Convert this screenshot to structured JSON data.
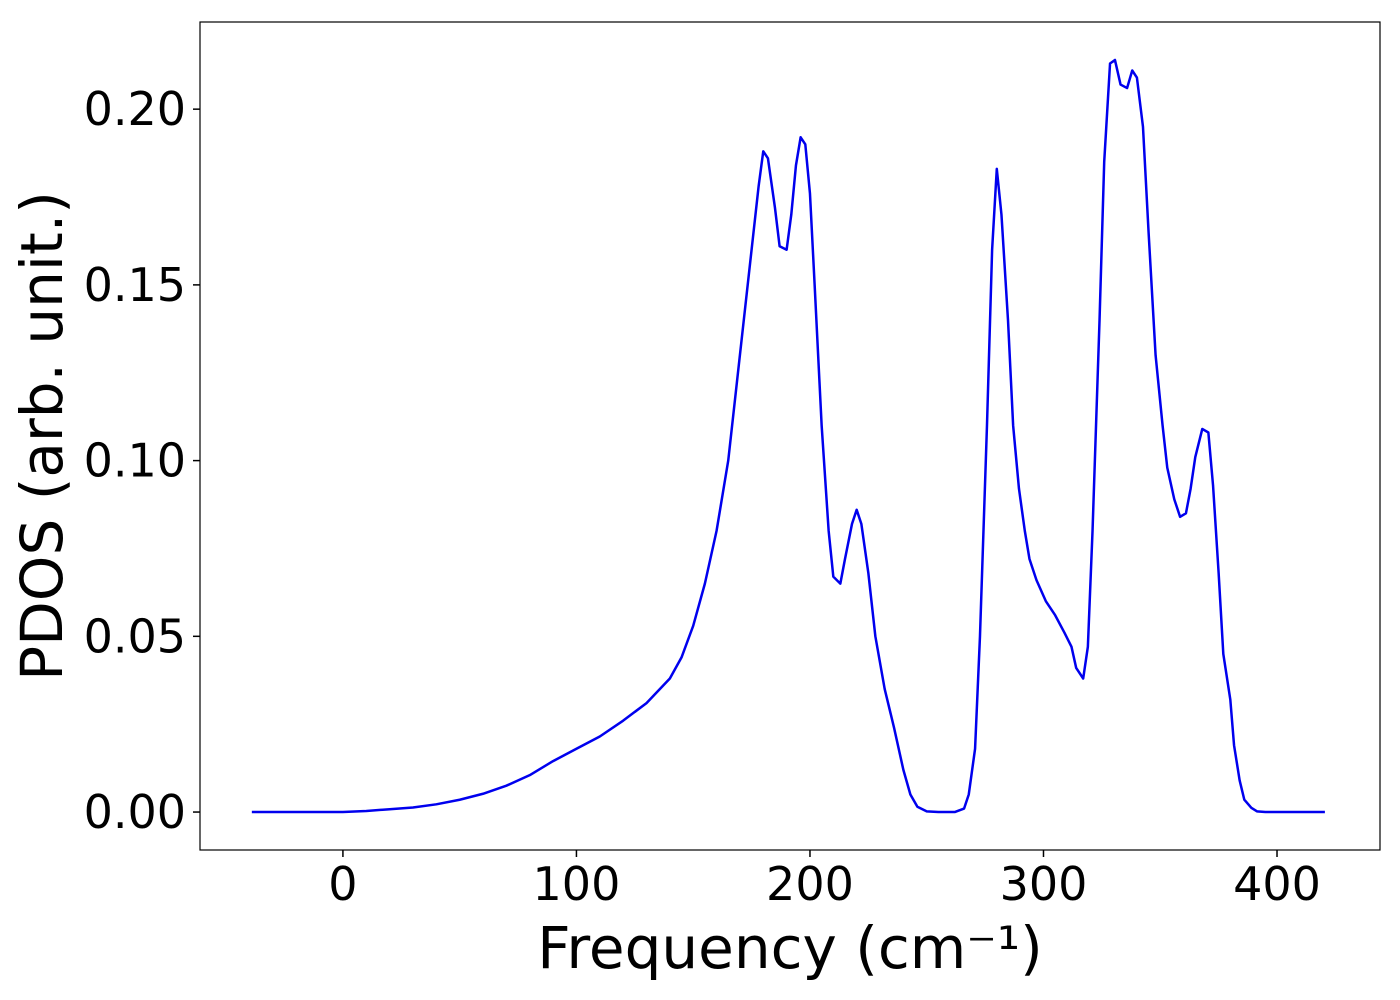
{
  "chart_data": {
    "type": "line",
    "xlabel": "Frequency (cm⁻¹)",
    "ylabel": "PDOS (arb. unit.)",
    "x": [
      -39,
      0,
      10,
      20,
      30,
      40,
      50,
      60,
      70,
      80,
      90,
      100,
      110,
      120,
      130,
      140,
      145,
      150,
      155,
      160,
      165,
      170,
      175,
      178,
      180,
      182,
      185,
      187,
      190,
      192,
      194,
      196,
      198,
      200,
      202,
      205,
      208,
      210,
      213,
      215,
      218,
      220,
      222,
      225,
      228,
      232,
      236,
      240,
      243,
      246,
      250,
      255,
      262,
      266,
      268,
      270.7,
      272.8,
      275.8,
      278,
      280,
      282,
      284.8,
      287,
      289.5,
      292,
      294,
      297,
      301,
      305,
      309,
      312,
      314,
      317,
      319,
      321,
      324,
      326,
      328.5,
      330.6,
      333,
      335.8,
      338,
      340,
      342.6,
      345,
      348,
      351,
      353,
      356,
      358.5,
      361,
      363,
      365,
      368,
      370.6,
      372.6,
      375,
      377,
      380,
      381.6,
      384,
      386,
      389,
      391.4,
      395,
      420.5
    ],
    "series": [
      {
        "name": "PDOS",
        "color": "#0000ee",
        "values": [
          0,
          0,
          0.0003,
          0.0008,
          0.0013,
          0.0022,
          0.0035,
          0.0052,
          0.0075,
          0.0105,
          0.0145,
          0.018,
          0.0215,
          0.026,
          0.031,
          0.038,
          0.044,
          0.053,
          0.065,
          0.08,
          0.1,
          0.13,
          0.16,
          0.178,
          0.188,
          0.186,
          0.172,
          0.161,
          0.16,
          0.17,
          0.184,
          0.192,
          0.19,
          0.176,
          0.15,
          0.11,
          0.08,
          0.067,
          0.065,
          0.072,
          0.082,
          0.086,
          0.082,
          0.068,
          0.05,
          0.035,
          0.024,
          0.012,
          0.005,
          0.0015,
          0.0002,
          0,
          0,
          0.001,
          0.005,
          0.018,
          0.05,
          0.11,
          0.16,
          0.183,
          0.17,
          0.14,
          0.11,
          0.092,
          0.08,
          0.072,
          0.066,
          0.06,
          0.056,
          0.051,
          0.047,
          0.041,
          0.038,
          0.047,
          0.08,
          0.14,
          0.185,
          0.213,
          0.214,
          0.207,
          0.206,
          0.211,
          0.209,
          0.195,
          0.165,
          0.13,
          0.11,
          0.098,
          0.089,
          0.084,
          0.085,
          0.092,
          0.101,
          0.109,
          0.108,
          0.093,
          0.068,
          0.045,
          0.032,
          0.019,
          0.009,
          0.0035,
          0.0012,
          0.0002,
          0,
          0
        ]
      }
    ],
    "xlim": [
      -61.2,
      444.1
    ],
    "ylim": [
      -0.0108,
      0.2248
    ],
    "xticks": [
      0,
      100,
      200,
      300,
      400
    ],
    "yticks": [
      {
        "value": 0,
        "label": "0.00"
      },
      {
        "value": 0.05,
        "label": "0.05"
      },
      {
        "value": 0.1,
        "label": "0.10"
      },
      {
        "value": 0.15,
        "label": "0.15"
      },
      {
        "value": 0.2,
        "label": "0.20"
      }
    ]
  }
}
